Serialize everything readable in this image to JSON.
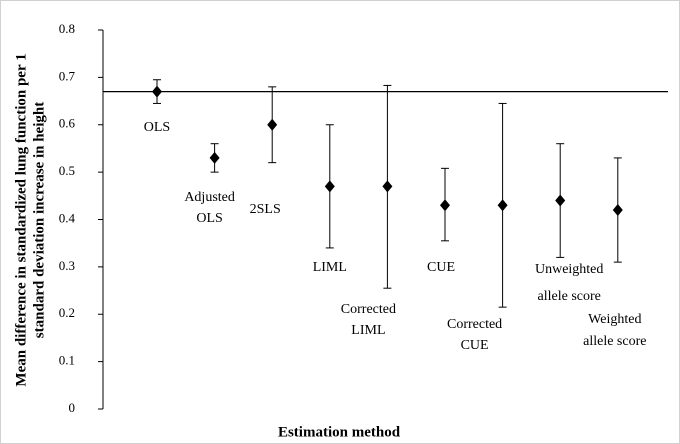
{
  "chart_data": {
    "type": "errorbar",
    "y_label": [
      "Mean difference in standardized lung function per 1",
      "standard deviation increase in height"
    ],
    "x_label": "Estimation method",
    "categories": [
      [
        "OLS"
      ],
      [
        "Adjusted",
        "OLS"
      ],
      [
        "2SLS"
      ],
      [
        "LIML"
      ],
      [
        "Corrected",
        "LIML"
      ],
      [
        "CUE"
      ],
      [
        "Corrected",
        "CUE"
      ],
      [
        "Unweighted",
        "allele score"
      ],
      [
        "Weighted",
        "allele score"
      ]
    ],
    "values": [
      0.67,
      0.53,
      0.6,
      0.47,
      0.47,
      0.43,
      0.43,
      0.44,
      0.42
    ],
    "ci_lower": [
      0.645,
      0.5,
      0.52,
      0.34,
      0.255,
      0.355,
      0.215,
      0.32,
      0.31
    ],
    "ci_upper": [
      0.695,
      0.56,
      0.68,
      0.6,
      0.683,
      0.508,
      0.645,
      0.56,
      0.53
    ],
    "reference_line": 0.67,
    "color": "#000000",
    "ylim": [
      0,
      0.8
    ],
    "yticks": [
      0,
      0.1,
      0.2,
      0.3,
      0.4,
      0.5,
      0.6,
      0.7,
      0.8
    ],
    "grid": false
  }
}
